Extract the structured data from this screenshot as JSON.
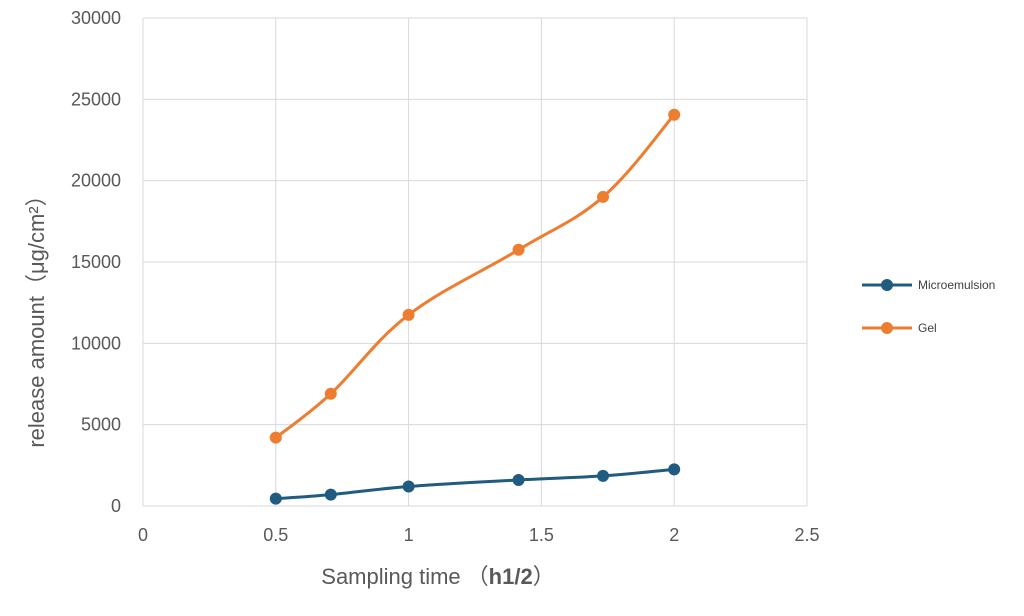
{
  "chart_data": {
    "type": "line",
    "xlabel": "Sampling time",
    "xlabel_unit": "h1/2",
    "ylabel": "release amount（μg/cm²）",
    "xlim": [
      0,
      2.5
    ],
    "ylim": [
      0,
      30000
    ],
    "x_ticks": [
      "0",
      "0.5",
      "1",
      "1.5",
      "2",
      "2.5"
    ],
    "y_ticks": [
      "0",
      "5000",
      "10000",
      "15000",
      "20000",
      "25000",
      "30000"
    ],
    "grid": true,
    "legend_position": "right",
    "series": [
      {
        "name": "Microemulsion",
        "color": "#1f5c80",
        "x": [
          0.5,
          0.707,
          1.0,
          1.414,
          1.732,
          2.0
        ],
        "values": [
          450,
          700,
          1200,
          1600,
          1850,
          2250
        ]
      },
      {
        "name": "Gel",
        "color": "#ed7d31",
        "x": [
          0.5,
          0.707,
          1.0,
          1.414,
          1.732,
          2.0
        ],
        "values": [
          4200,
          6900,
          11750,
          15750,
          19000,
          24050
        ]
      }
    ]
  }
}
